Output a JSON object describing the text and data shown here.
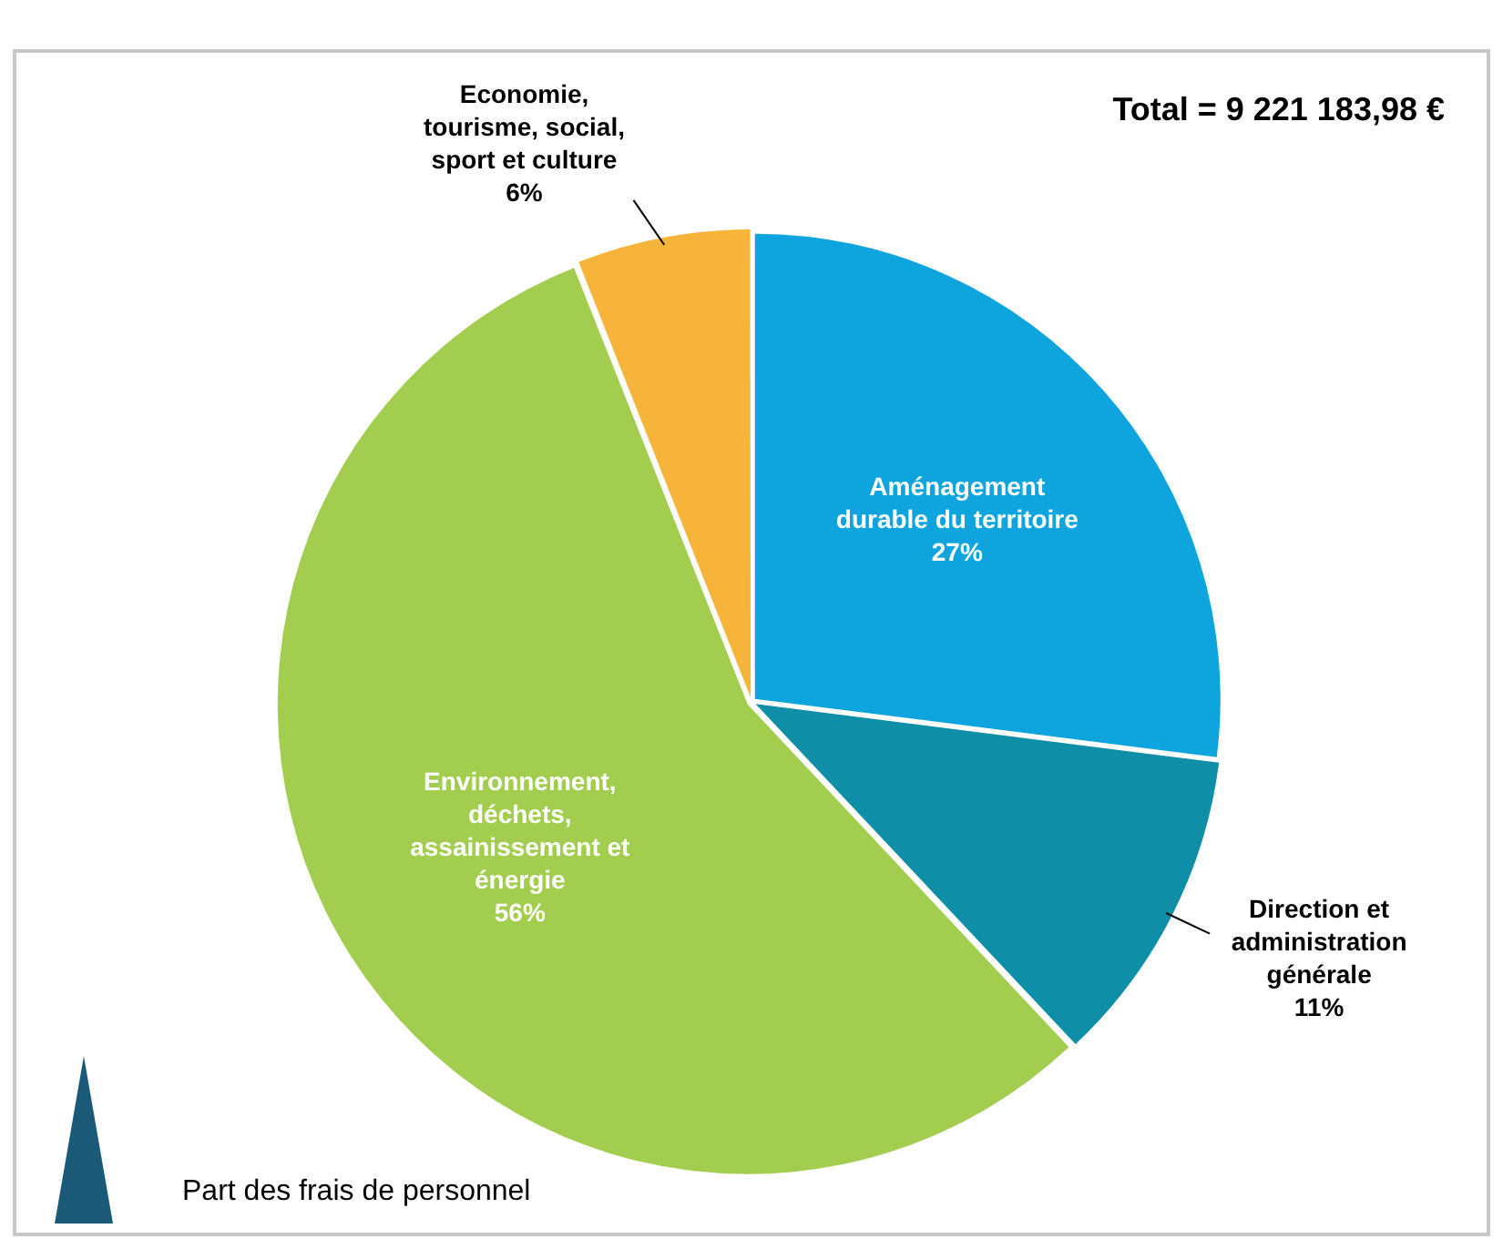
{
  "chart_data": {
    "type": "pie",
    "categories": [
      "Aménagement durable du territoire",
      "Direction et administration générale",
      "Environnement, déchets, assainissement et énergie",
      "Economie, tourisme, social, sport et culture"
    ],
    "values": [
      27,
      11,
      56,
      6
    ],
    "value_labels": [
      "27%",
      "11%",
      "56%",
      "6%"
    ],
    "colors": [
      "#0ea5de",
      "#0f8ea8",
      "#a3cd4f",
      "#f7b43a"
    ],
    "annotations": [
      "Total = 9 221 183,98 €",
      "Part des frais de personnel"
    ]
  }
}
